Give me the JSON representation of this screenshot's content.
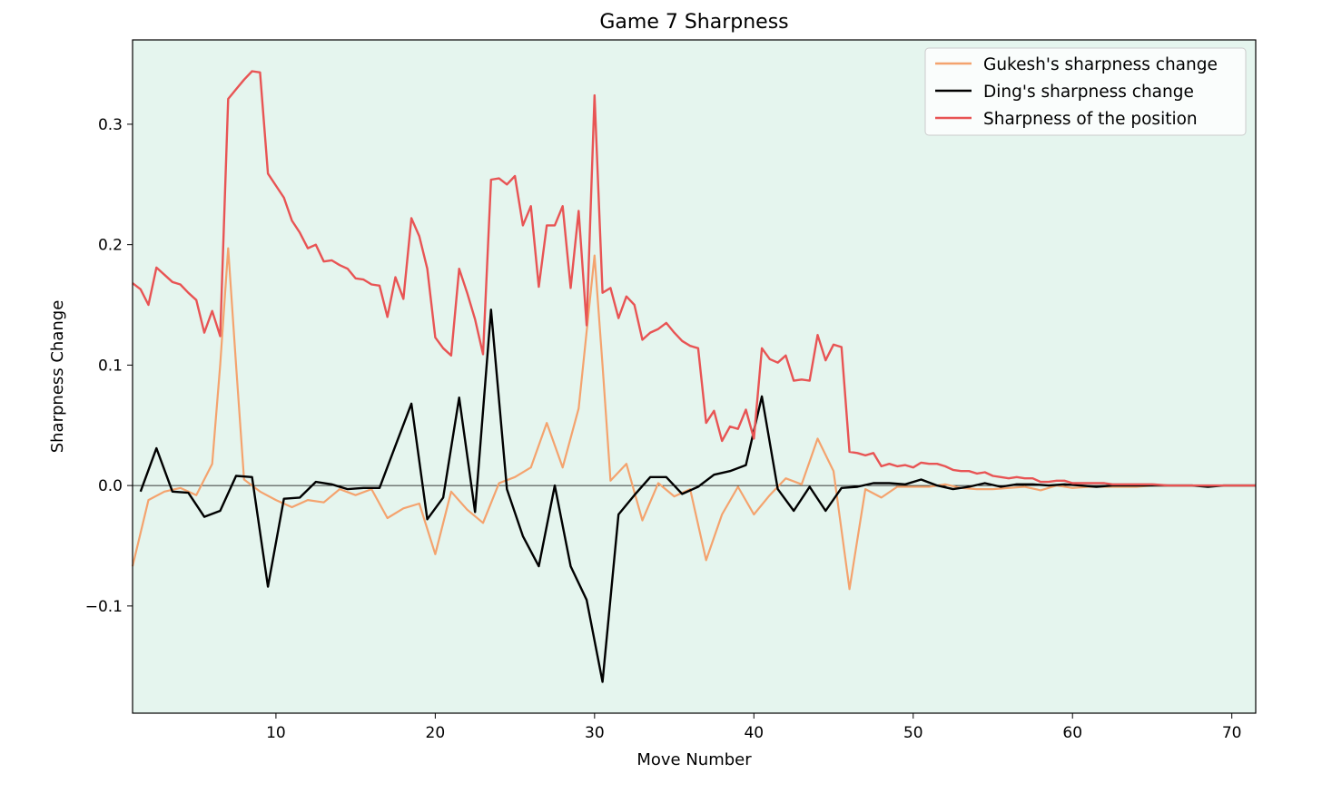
{
  "chart_data": {
    "type": "line",
    "title": "Game 7 Sharpness",
    "xlabel": "Move Number",
    "ylabel": "Sharpness Change",
    "xlim": [
      1,
      71.5
    ],
    "ylim": [
      -0.189,
      0.37
    ],
    "xticks": [
      10,
      20,
      30,
      40,
      50,
      60,
      70
    ],
    "yticks": [
      -0.1,
      0.0,
      0.1,
      0.2,
      0.3
    ],
    "ytick_labels": [
      "−0.1",
      "0.0",
      "0.1",
      "0.2",
      "0.3"
    ],
    "background": "#e5f5ee",
    "zero_line": true,
    "grid": false,
    "legend_position": "top-right",
    "series": [
      {
        "name": "Gukesh's sharpness change",
        "color": "#f4a36e",
        "x": [
          1,
          2,
          3,
          4,
          5,
          6,
          6.5,
          7,
          7.5,
          8,
          9,
          10,
          11,
          12,
          13,
          14,
          15,
          16,
          17,
          18,
          19,
          20,
          21,
          22,
          23,
          24,
          25,
          26,
          27,
          28,
          29,
          30,
          30.5,
          31,
          32,
          33,
          34,
          35,
          36,
          37,
          38,
          39,
          40,
          41,
          42,
          43,
          44,
          45,
          46,
          47,
          48,
          49,
          50,
          51,
          52,
          53,
          54,
          55,
          56,
          57,
          58,
          59,
          60,
          61,
          62,
          63,
          64,
          65,
          66,
          67,
          68,
          69,
          70,
          71.5
        ],
        "y": [
          -0.067,
          -0.012,
          -0.005,
          -0.002,
          -0.008,
          0.018,
          0.1,
          0.197,
          0.1,
          0.005,
          -0.005,
          -0.012,
          -0.018,
          -0.012,
          -0.014,
          -0.003,
          -0.008,
          -0.003,
          -0.027,
          -0.019,
          -0.015,
          -0.057,
          -0.005,
          -0.02,
          -0.031,
          0.002,
          0.007,
          0.015,
          0.052,
          0.015,
          0.064,
          0.191,
          0.1,
          0.004,
          0.018,
          -0.029,
          0.002,
          -0.009,
          -0.003,
          -0.062,
          -0.024,
          -0.001,
          -0.024,
          -0.008,
          0.006,
          0.001,
          0.039,
          0.012,
          -0.086,
          -0.003,
          -0.01,
          -0.001,
          -0.001,
          -0.001,
          0.001,
          -0.002,
          -0.003,
          -0.003,
          -0.002,
          -0.001,
          -0.004,
          0.0,
          -0.002,
          -0.001,
          -0.001,
          -0.001,
          -0.001,
          0.0,
          0.0,
          0.0,
          0.0,
          0.0,
          0.0,
          0.0
        ]
      },
      {
        "name": "Ding's sharpness change",
        "color": "#000000",
        "x": [
          1.5,
          2.5,
          3.5,
          4.5,
          5.5,
          6.5,
          7.5,
          8.5,
          9.5,
          10.5,
          11.5,
          12.5,
          13.5,
          14.5,
          15.5,
          16.5,
          17.5,
          18.5,
          19.5,
          20.5,
          21.5,
          22.5,
          23.5,
          24.5,
          25.5,
          26.5,
          27.5,
          28.5,
          29.5,
          30.5,
          31.5,
          32.5,
          33.5,
          34.5,
          35.5,
          36.5,
          37.5,
          38.5,
          39.5,
          40.5,
          41.5,
          42.5,
          43.5,
          44.5,
          45.5,
          46.5,
          47.5,
          48.5,
          49.5,
          50.5,
          51.5,
          52.5,
          53.5,
          54.5,
          55.5,
          56.5,
          57.5,
          58.5,
          59.5,
          60.5,
          61.5,
          62.5,
          63.5,
          64.5,
          65.5,
          66.5,
          67.5,
          68.5,
          69.5,
          70.5,
          71.5
        ],
        "y": [
          -0.005,
          0.031,
          -0.005,
          -0.006,
          -0.026,
          -0.021,
          0.008,
          0.007,
          -0.084,
          -0.011,
          -0.01,
          0.003,
          0.001,
          -0.003,
          -0.002,
          -0.002,
          0.033,
          0.068,
          -0.028,
          -0.01,
          0.073,
          -0.022,
          0.146,
          -0.003,
          -0.042,
          -0.067,
          0.0,
          -0.067,
          -0.095,
          -0.163,
          -0.024,
          -0.008,
          0.007,
          0.007,
          -0.007,
          -0.001,
          0.009,
          0.012,
          0.017,
          0.074,
          -0.003,
          -0.021,
          -0.001,
          -0.021,
          -0.002,
          -0.001,
          0.002,
          0.002,
          0.001,
          0.005,
          0.0,
          -0.003,
          -0.001,
          0.002,
          -0.001,
          0.001,
          0.001,
          0.0,
          0.001,
          0.0,
          -0.001,
          0.0,
          0.0,
          0.0,
          0.0,
          0.0,
          0.0,
          -0.001,
          0.0,
          0.0,
          0.0
        ]
      },
      {
        "name": "Sharpness of the position",
        "color": "#e85454",
        "x": [
          1,
          1.5,
          2,
          2.5,
          3,
          3.5,
          4,
          4.5,
          5,
          5.5,
          6,
          6.5,
          7,
          7.5,
          8,
          8.5,
          9,
          9.5,
          10,
          10.5,
          11,
          11.5,
          12,
          12.5,
          13,
          13.5,
          14,
          14.5,
          15,
          15.5,
          16,
          16.5,
          17,
          17.5,
          18,
          18.5,
          19,
          19.5,
          20,
          20.5,
          21,
          21.5,
          22,
          22.5,
          23,
          23.5,
          24,
          24.5,
          25,
          25.5,
          26,
          26.5,
          27,
          27.5,
          28,
          28.5,
          29,
          29.5,
          30,
          30.5,
          31,
          31.5,
          32,
          32.5,
          33,
          33.5,
          34,
          34.5,
          35,
          35.5,
          36,
          36.5,
          37,
          37.5,
          38,
          38.5,
          39,
          39.5,
          40,
          40.5,
          41,
          41.5,
          42,
          42.5,
          43,
          43.5,
          44,
          44.5,
          45,
          45.5,
          46,
          46.5,
          47,
          47.5,
          48,
          48.5,
          49,
          49.5,
          50,
          50.5,
          51,
          51.5,
          52,
          52.5,
          53,
          53.5,
          54,
          54.5,
          55,
          55.5,
          56,
          56.5,
          57,
          57.5,
          58,
          58.5,
          59,
          59.5,
          60,
          60.5,
          61,
          61.5,
          62,
          62.5,
          63,
          63.5,
          64,
          64.5,
          65,
          66,
          67,
          68,
          69,
          70,
          71.5
        ],
        "y": [
          0.168,
          0.163,
          0.15,
          0.181,
          0.175,
          0.169,
          0.167,
          0.16,
          0.154,
          0.127,
          0.145,
          0.124,
          0.321,
          0.329,
          0.337,
          0.344,
          0.343,
          0.259,
          0.249,
          0.239,
          0.22,
          0.21,
          0.197,
          0.2,
          0.186,
          0.187,
          0.183,
          0.18,
          0.172,
          0.171,
          0.167,
          0.166,
          0.14,
          0.173,
          0.155,
          0.222,
          0.207,
          0.18,
          0.123,
          0.114,
          0.108,
          0.18,
          0.16,
          0.138,
          0.109,
          0.254,
          0.255,
          0.25,
          0.257,
          0.216,
          0.232,
          0.165,
          0.216,
          0.216,
          0.232,
          0.164,
          0.228,
          0.133,
          0.324,
          0.16,
          0.164,
          0.139,
          0.157,
          0.15,
          0.121,
          0.127,
          0.13,
          0.135,
          0.127,
          0.12,
          0.116,
          0.114,
          0.052,
          0.062,
          0.037,
          0.049,
          0.047,
          0.063,
          0.039,
          0.114,
          0.105,
          0.102,
          0.108,
          0.087,
          0.088,
          0.087,
          0.125,
          0.104,
          0.117,
          0.115,
          0.028,
          0.027,
          0.025,
          0.027,
          0.016,
          0.018,
          0.016,
          0.017,
          0.015,
          0.019,
          0.018,
          0.018,
          0.016,
          0.013,
          0.012,
          0.012,
          0.01,
          0.011,
          0.008,
          0.007,
          0.006,
          0.007,
          0.006,
          0.006,
          0.003,
          0.003,
          0.004,
          0.004,
          0.002,
          0.002,
          0.002,
          0.002,
          0.002,
          0.001,
          0.001,
          0.001,
          0.001,
          0.001,
          0.001,
          0.0,
          0.0,
          0.0,
          0.0,
          0.0,
          0.0
        ]
      }
    ]
  }
}
